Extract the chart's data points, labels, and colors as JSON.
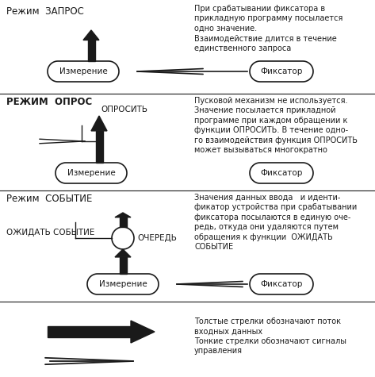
{
  "bg_color": "#ffffff",
  "line_color": "#1a1a1a",
  "sec1_title": "Режим  ЗАПРОС",
  "sec2_title": "РЕЖИМ  ОПРОС",
  "sec3_title": "Режим  СОБЫТИЕ",
  "desc1": "При срабатывании фиксатора в\nприкладную программу посылается\nодно значение.\nВзаимодействие длится в течение\nединственного запроса",
  "desc2": "Пусковой механизм не используется.\nЗначение посылается прикладной\nпрограмме при каждом обращении к\nфункции ОПРОСИТЬ. В течение одно-\nго взаимодействия функция ОПРОСИТЬ\nможет вызываться многократно",
  "desc3": "Значения данных ввода   и иденти-\nфикатор устройства при срабатывании\nфиксатора посылаются в единую оче-\nредь, откуда они удаляются путем\nобращения к функции  ОЖИДАТЬ\nСОБЫТИЕ",
  "desc4": "Толстые стрелки обозначают поток\nвходных данных\nТонкие стрелки обозначают сигналы\nуправления",
  "fontsize_title": 8.5,
  "fontsize_desc": 7.0,
  "fontsize_label": 7.5
}
